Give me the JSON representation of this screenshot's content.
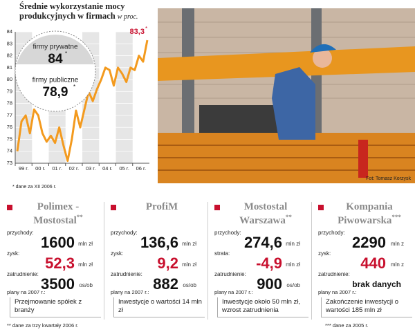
{
  "chart_data": {
    "type": "line",
    "title": "Średnie wykorzystanie mocy produkcyjnych w firmach",
    "subtitle": "w proc.",
    "categories": [
      "99 r.",
      null,
      null,
      null,
      "00 r.",
      null,
      null,
      null,
      "01 r.",
      null,
      null,
      null,
      "02 r.",
      null,
      null,
      null,
      "03 r.",
      null,
      null,
      null,
      "04 r.",
      null,
      null,
      null,
      "05 r.",
      null,
      null,
      null,
      "06 r.",
      null,
      null,
      null
    ],
    "values": [
      74.0,
      76.5,
      77.0,
      75.5,
      77.5,
      77.0,
      75.5,
      74.8,
      75.3,
      74.7,
      76.0,
      74.5,
      73.2,
      75.0,
      77.4,
      76.0,
      77.5,
      79.0,
      78.2,
      79.2,
      80.0,
      81.0,
      80.8,
      79.5,
      81.0,
      80.5,
      79.8,
      81.0,
      80.8,
      82.0,
      81.5,
      83.3
    ],
    "value_labels": [
      null,
      null,
      null,
      null,
      null,
      null,
      null,
      null,
      null,
      null,
      null,
      null,
      null,
      null,
      null,
      null,
      null,
      null,
      null,
      null,
      null,
      null,
      null,
      null,
      null,
      null,
      null,
      null,
      null,
      null,
      null,
      "83,3"
    ],
    "color": "#f39a1e",
    "ylim": [
      73,
      84
    ],
    "yticks": [
      73,
      74,
      75,
      76,
      77,
      78,
      79,
      80,
      81,
      82,
      83,
      84
    ],
    "grid": true,
    "footnote_mark": "*",
    "callout": [
      {
        "label": "firmy prywatne",
        "value": "84",
        "mark": "*"
      },
      {
        "label": "firmy publiczne",
        "value": "78,9",
        "mark": "*"
      }
    ],
    "footnote": "* dane za XII 2006 r."
  },
  "photo_credit": "Fot: Tomasz Korzysk",
  "companies": [
    {
      "name": "Polimex - Mostostal",
      "note": "**",
      "rows": [
        {
          "label": "przychody:",
          "value": "1600",
          "unit": "mln zł"
        },
        {
          "label": "zysk:",
          "value": "52,3",
          "unit": "mln zł"
        },
        {
          "label": "zatrudnienie:",
          "value": "3500",
          "unit": "os/ob"
        }
      ],
      "plans_label": "plany na 2007 r.:",
      "plans": "Przejmowanie spółek z branży"
    },
    {
      "name": "ProfiM",
      "note": null,
      "rows": [
        {
          "label": "przychody:",
          "value": "136,6",
          "unit": "mln zł"
        },
        {
          "label": "zysk:",
          "value": "9,2",
          "unit": "mln zł"
        },
        {
          "label": "zatrudnienie:",
          "value": "882",
          "unit": "os/ob"
        }
      ],
      "plans_label": "plany na 2007 r.:",
      "plans": "Inwestycje o wartości 14 mln zł"
    },
    {
      "name": "Mostostal Warszawa",
      "note": "**",
      "rows": [
        {
          "label": "przychody:",
          "value": "274,6",
          "unit": "mln zł"
        },
        {
          "label": "strata:",
          "value": "-4,9",
          "unit": "mln zł"
        },
        {
          "label": "zatrudnienie:",
          "value": "900",
          "unit": "os/ob"
        }
      ],
      "plans_label": "plany na 2007 r.:",
      "plans": "Inwestycje około 50 mln zł, wzrost zatrudnienia"
    },
    {
      "name": "Kompania Piwowarska",
      "note": "***",
      "rows": [
        {
          "label": "przychody:",
          "value": "2290",
          "unit": "mln z"
        },
        {
          "label": "zysk:",
          "value": "440",
          "unit": "mln z"
        },
        {
          "label": "zatrudnienie:",
          "value": "brak danych",
          "unit": null
        }
      ],
      "plans_label": "plany na 2007 r.:",
      "plans": "Zakończenie inwestycji o wartości 185 mln zł"
    }
  ],
  "footnotes": [
    "** dane za trzy kwartały 2006 r.",
    "*** dane za 2005 r."
  ]
}
